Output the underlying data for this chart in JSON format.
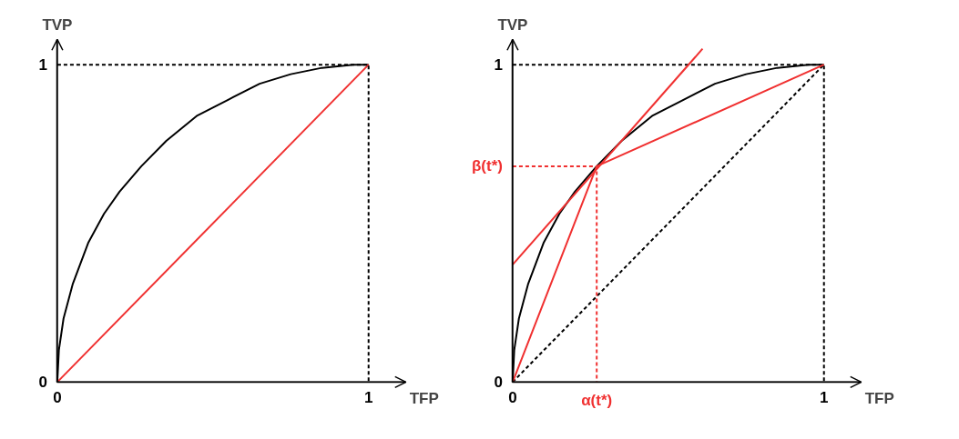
{
  "chart_data": [
    {
      "type": "line",
      "xlabel": "TFP",
      "ylabel": "TVP",
      "xlim": [
        0,
        1.12
      ],
      "ylim": [
        0,
        1.08
      ],
      "xticks": [
        0,
        1
      ],
      "yticks": [
        0,
        1
      ],
      "grid": false,
      "marker": "none",
      "series": [
        {
          "color": "#000000",
          "line_style": "solid",
          "x": [
            0,
            0.005,
            0.02,
            0.05,
            0.1,
            0.15,
            0.2,
            0.27,
            0.35,
            0.45,
            0.55,
            0.65,
            0.75,
            0.85,
            0.95,
            1
          ],
          "values": [
            0,
            0.1,
            0.2,
            0.31,
            0.44,
            0.53,
            0.6,
            0.68,
            0.76,
            0.84,
            0.89,
            0.94,
            0.97,
            0.99,
            1,
            1
          ]
        },
        {
          "color": "#f03030",
          "line_style": "solid",
          "x": [
            0,
            1
          ],
          "values": [
            0,
            1
          ]
        },
        {
          "color": "#000000",
          "line_style": "dashed",
          "x": [
            0,
            1,
            1
          ],
          "values": [
            1,
            1,
            0
          ]
        }
      ]
    },
    {
      "type": "line",
      "xlabel": "TFP",
      "ylabel": "TVP",
      "xlim": [
        0,
        1.12
      ],
      "ylim": [
        0,
        1.08
      ],
      "xticks": [
        0,
        {
          "value": 0.27,
          "label": "α(t*)"
        },
        1
      ],
      "yticks": [
        0,
        {
          "value": 0.68,
          "label": "β(t*)"
        },
        1
      ],
      "grid": false,
      "marker": "none",
      "series": [
        {
          "color": "#000000",
          "line_style": "solid",
          "x": [
            0,
            0.005,
            0.02,
            0.05,
            0.1,
            0.15,
            0.2,
            0.27,
            0.35,
            0.45,
            0.55,
            0.65,
            0.75,
            0.85,
            0.95,
            1
          ],
          "values": [
            0,
            0.1,
            0.2,
            0.31,
            0.44,
            0.53,
            0.6,
            0.68,
            0.76,
            0.84,
            0.89,
            0.94,
            0.97,
            0.99,
            1,
            1
          ]
        },
        {
          "color": "#000000",
          "line_style": "dashed",
          "x": [
            0,
            1,
            1
          ],
          "values": [
            1,
            1,
            0
          ]
        },
        {
          "color": "#000000",
          "line_style": "dashed",
          "x": [
            0,
            1
          ],
          "values": [
            0,
            1
          ]
        },
        {
          "color": "#f03030",
          "line_style": "solid",
          "x": [
            0,
            0.61
          ],
          "values": [
            0.37,
            1.05
          ]
        },
        {
          "color": "#f03030",
          "line_style": "solid",
          "x": [
            0,
            0.27,
            1
          ],
          "values": [
            0,
            0.68,
            1
          ]
        },
        {
          "color": "#f03030",
          "line_style": "dashed",
          "x": [
            0,
            0.27,
            0.27
          ],
          "values": [
            0.68,
            0.68,
            0
          ]
        }
      ]
    }
  ]
}
